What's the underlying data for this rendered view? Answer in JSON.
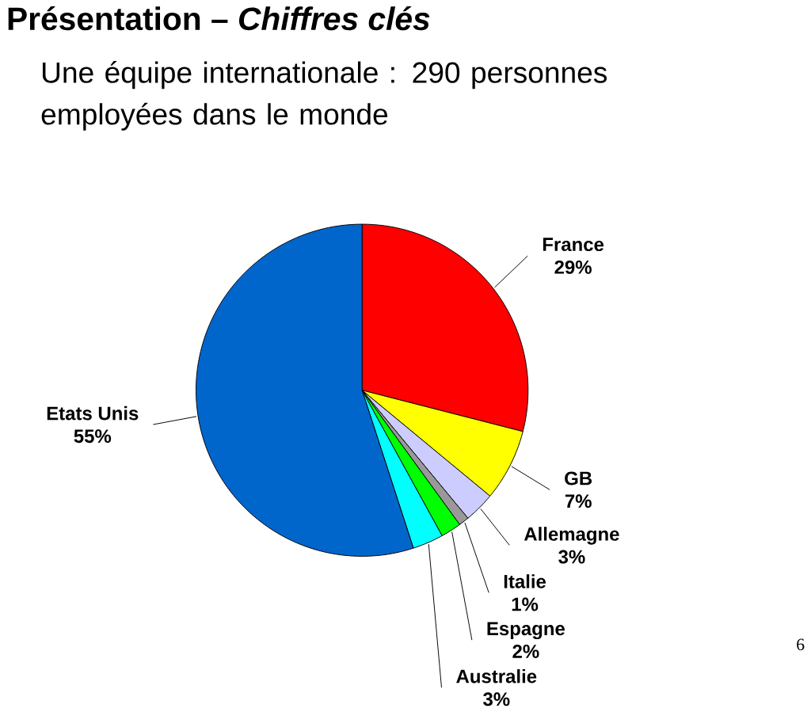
{
  "chart_data": {
    "type": "pie",
    "title": "Présentation – *Chiffres clés*",
    "subtitle": "Une équipe internationale : 290 personnes employées dans le monde",
    "categories": [
      "France",
      "GB",
      "Allemagne",
      "Italie",
      "Espagne",
      "Australie",
      "Etats Unis"
    ],
    "values": [
      29,
      7,
      3,
      1,
      2,
      3,
      55
    ],
    "value_labels": [
      "29%",
      "7%",
      "3%",
      "1%",
      "2%",
      "3%",
      "55%"
    ],
    "colors": [
      "#ff0000",
      "#ffff00",
      "#ccccff",
      "#999999",
      "#00ff00",
      "#00ffff",
      "#0066cc"
    ],
    "annotations": [
      "6"
    ]
  }
}
